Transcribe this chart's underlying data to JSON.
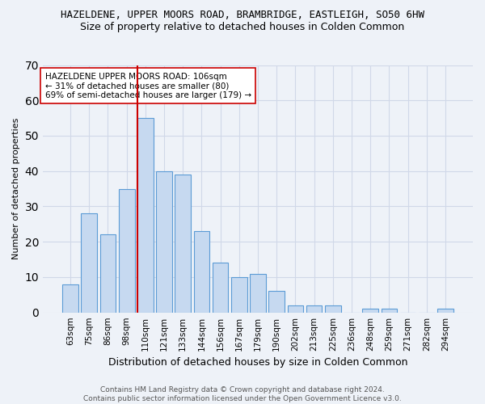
{
  "title": "HAZELDENE, UPPER MOORS ROAD, BRAMBRIDGE, EASTLEIGH, SO50 6HW",
  "subtitle": "Size of property relative to detached houses in Colden Common",
  "xlabel": "Distribution of detached houses by size in Colden Common",
  "ylabel": "Number of detached properties",
  "footer_line1": "Contains HM Land Registry data © Crown copyright and database right 2024.",
  "footer_line2": "Contains public sector information licensed under the Open Government Licence v3.0.",
  "categories": [
    "63sqm",
    "75sqm",
    "86sqm",
    "98sqm",
    "110sqm",
    "121sqm",
    "133sqm",
    "144sqm",
    "156sqm",
    "167sqm",
    "179sqm",
    "190sqm",
    "202sqm",
    "213sqm",
    "225sqm",
    "236sqm",
    "248sqm",
    "259sqm",
    "271sqm",
    "282sqm",
    "294sqm"
  ],
  "values": [
    8,
    28,
    22,
    35,
    55,
    40,
    39,
    23,
    14,
    10,
    11,
    6,
    2,
    2,
    2,
    0,
    1,
    1,
    0,
    0,
    1
  ],
  "bar_color": "#c6d9f0",
  "bar_edge_color": "#5b9bd5",
  "vline_index": 4,
  "vline_color": "#cc0000",
  "annotation_text": "HAZELDENE UPPER MOORS ROAD: 106sqm\n← 31% of detached houses are smaller (80)\n69% of semi-detached houses are larger (179) →",
  "annotation_box_color": "#ffffff",
  "annotation_box_edge": "#cc0000",
  "ylim": [
    0,
    70
  ],
  "yticks": [
    0,
    10,
    20,
    30,
    40,
    50,
    60,
    70
  ],
  "grid_color": "#d0d8e8",
  "background_color": "#eef2f8",
  "title_fontsize": 9,
  "subtitle_fontsize": 9,
  "ylabel_fontsize": 8,
  "xlabel_fontsize": 9,
  "tick_fontsize": 7.5,
  "annotation_fontsize": 7.5,
  "footer_fontsize": 6.5
}
